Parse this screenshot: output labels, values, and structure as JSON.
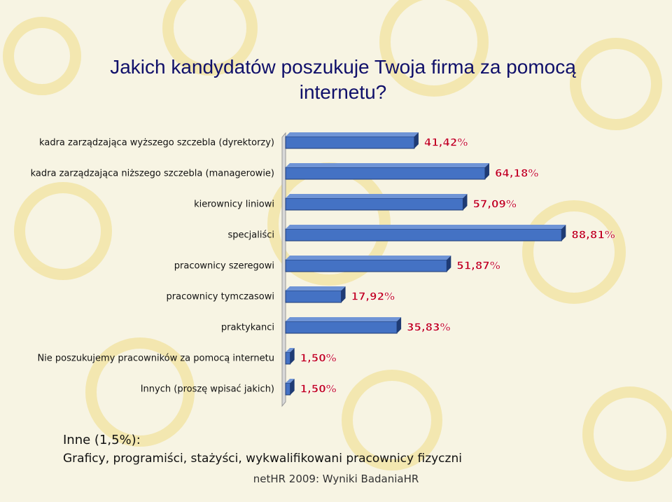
{
  "title": "Jakich kandydatów poszukuje Twoja firma za pomocą internetu?",
  "colors": {
    "bar": "#4472c4",
    "bar_dark": "#1f3b74",
    "value_label": "#c0001e",
    "title": "#10106a"
  },
  "chart_data": {
    "type": "bar",
    "orientation": "horizontal",
    "categories": [
      "kadra zarządzająca wyższego szczebla (dyrektorzy)",
      "kadra zarządzająca niższego szczebla (managerowie)",
      "kierownicy liniowi",
      "specjaliści",
      "pracownicy szeregowi",
      "pracownicy tymczasowi",
      "praktykanci",
      "Nie poszukujemy pracowników za pomocą internetu",
      "Innych (proszę wpisać jakich)"
    ],
    "values": [
      41.42,
      64.18,
      57.09,
      88.81,
      51.87,
      17.92,
      35.83,
      1.5,
      1.5
    ],
    "value_labels": [
      "41,42%",
      "64,18%",
      "57,09%",
      "88,81%",
      "51,87%",
      "17,92%",
      "35,83%",
      "1,50%",
      "1,50%"
    ],
    "xlim": [
      0,
      100
    ]
  },
  "note": {
    "label": "Inne (1,5%):",
    "text": "Graficy, programiści, stażyści, wykwalifikowani pracownicy fizyczni"
  },
  "footer": "netHR 2009: Wyniki BadaniaHR"
}
